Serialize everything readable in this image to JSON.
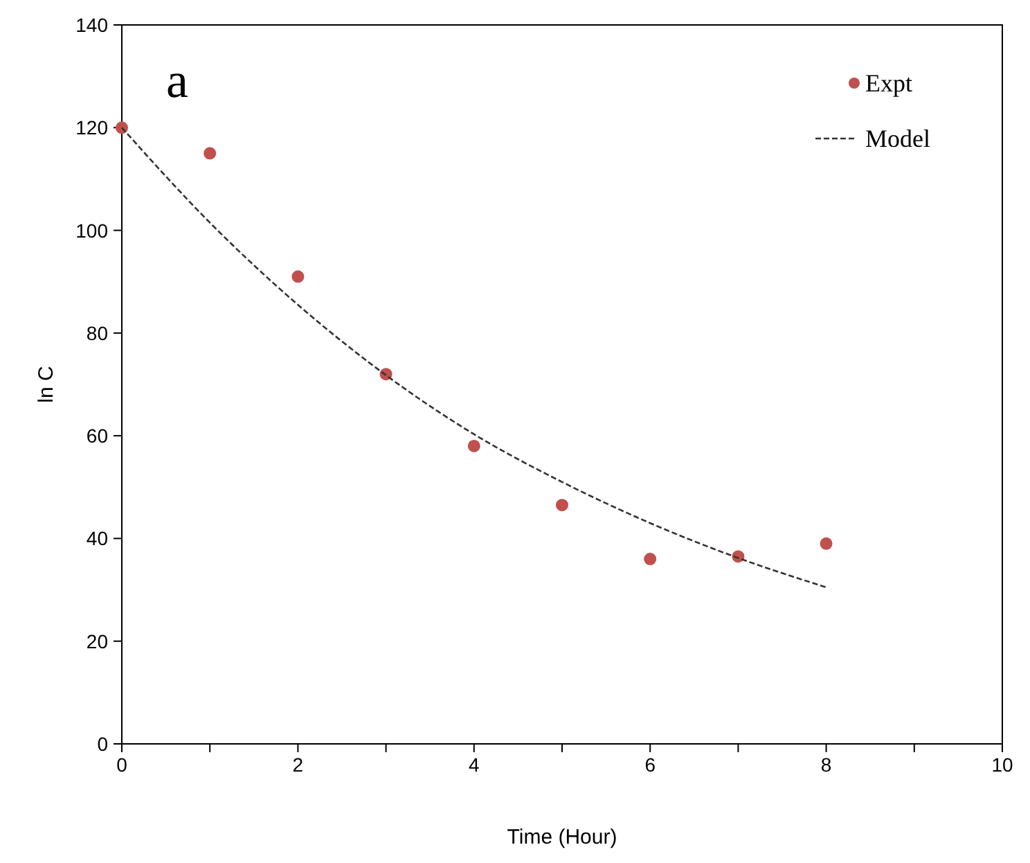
{
  "chart_data": {
    "type": "scatter",
    "xlabel": "Time (Hour)",
    "ylabel": "ln C",
    "annotations": [
      "a"
    ],
    "xlim": [
      0,
      10
    ],
    "xticks": [
      0,
      {
        "value": 1,
        "label": null
      },
      2,
      {
        "value": 3,
        "label": null
      },
      4,
      {
        "value": 5,
        "label": null
      },
      6,
      {
        "value": 7,
        "label": null
      },
      8,
      {
        "value": 9,
        "label": null
      },
      10
    ],
    "ylim": [
      0,
      140
    ],
    "yticks": [
      0,
      20,
      40,
      60,
      80,
      100,
      120,
      140
    ],
    "grid": false,
    "legend": "top right",
    "series": [
      {
        "name": "Expt",
        "marker": "circle",
        "color": "#c0504d",
        "x": [
          0,
          1,
          2,
          3,
          4,
          5,
          6,
          7,
          8
        ],
        "values": [
          120,
          115,
          91,
          72,
          58,
          46.5,
          36,
          36.5,
          39
        ]
      },
      {
        "name": "Model",
        "type": "line",
        "marker": "none",
        "line_style": "dashed",
        "color": "#333333",
        "x": [
          0,
          1,
          2,
          3,
          4,
          5,
          6,
          7,
          8
        ],
        "values": [
          120,
          101.5,
          85.5,
          71.8,
          60.3,
          51,
          43,
          36.2,
          30.5
        ]
      }
    ]
  }
}
